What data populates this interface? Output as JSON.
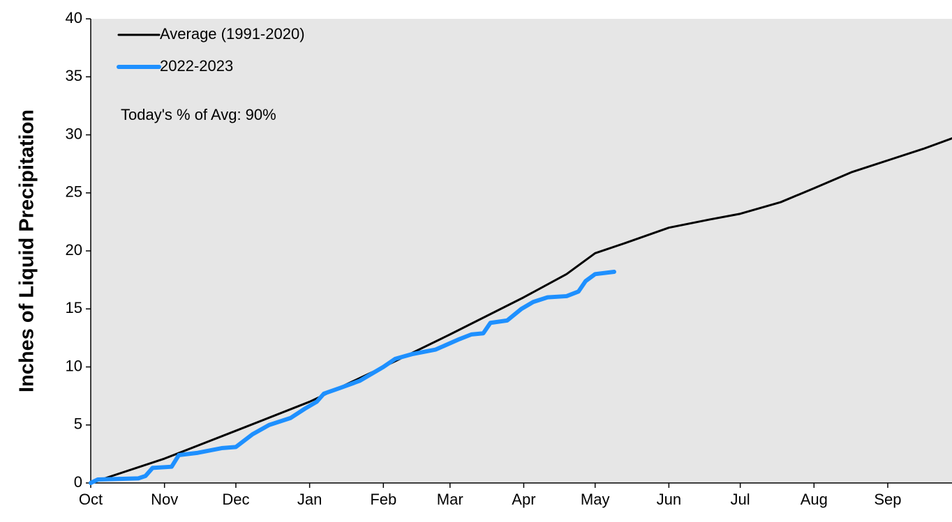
{
  "chart_data": {
    "type": "line",
    "ylabel": "Inches of Liquid Precipitation",
    "annotation": "Today's % of Avg: 90%",
    "xlim": [
      0,
      362
    ],
    "ylim": [
      0,
      40
    ],
    "xticks": [
      {
        "value": 0,
        "label": "Oct"
      },
      {
        "value": 31,
        "label": "Nov"
      },
      {
        "value": 61,
        "label": "Dec"
      },
      {
        "value": 92,
        "label": "Jan"
      },
      {
        "value": 123,
        "label": "Feb"
      },
      {
        "value": 151,
        "label": "Mar"
      },
      {
        "value": 182,
        "label": "Apr"
      },
      {
        "value": 212,
        "label": "May"
      },
      {
        "value": 243,
        "label": "Jun"
      },
      {
        "value": 273,
        "label": "Jul"
      },
      {
        "value": 304,
        "label": "Aug"
      },
      {
        "value": 335,
        "label": "Sep"
      }
    ],
    "yticks": [
      0,
      5,
      10,
      15,
      20,
      25,
      30,
      35,
      40
    ],
    "legend": "upper left",
    "series": [
      {
        "name": "Average (1991-2020)",
        "color": "#000000",
        "width": 3,
        "x": [
          0,
          31,
          61,
          92,
          123,
          151,
          182,
          200,
          212,
          225,
          243,
          260,
          273,
          290,
          304,
          320,
          335,
          350,
          362
        ],
        "values": [
          0,
          2.1,
          4.5,
          7.0,
          10.0,
          12.8,
          16.0,
          18.0,
          19.8,
          20.7,
          22.0,
          22.7,
          23.2,
          24.2,
          25.4,
          26.8,
          27.8,
          28.8,
          29.7
        ]
      },
      {
        "name": "2022-2023",
        "color": "#1e90ff",
        "width": 6,
        "x": [
          0,
          3,
          20,
          23,
          26,
          34,
          37,
          45,
          55,
          61,
          68,
          75,
          84,
          90,
          95,
          98,
          105,
          113,
          118,
          123,
          128,
          135,
          145,
          155,
          160,
          165,
          168,
          175,
          181,
          186,
          192,
          200,
          205,
          208,
          212,
          220
        ],
        "values": [
          0,
          0.3,
          0.4,
          0.6,
          1.3,
          1.4,
          2.4,
          2.6,
          3.0,
          3.1,
          4.2,
          5.0,
          5.6,
          6.4,
          7.0,
          7.7,
          8.2,
          8.8,
          9.4,
          10.0,
          10.7,
          11.1,
          11.5,
          12.4,
          12.8,
          12.9,
          13.8,
          14.0,
          15.0,
          15.6,
          16.0,
          16.1,
          16.5,
          17.4,
          18.0,
          18.2
        ]
      }
    ]
  }
}
